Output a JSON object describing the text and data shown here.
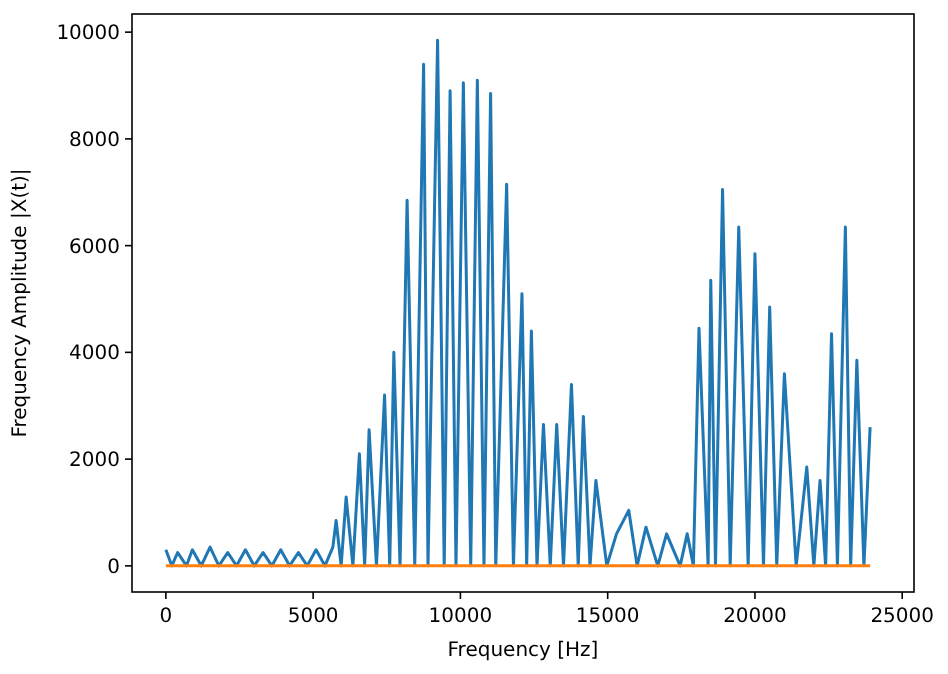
{
  "chart_data": {
    "type": "line",
    "xlabel": "Frequency [Hz]",
    "ylabel": "Frequency Amplitude |X(t)|",
    "xlim": [
      -1150,
      25400
    ],
    "ylim": [
      -490,
      10340
    ],
    "xticks": [
      0,
      5000,
      10000,
      15000,
      20000,
      25000
    ],
    "yticks": [
      0,
      2000,
      4000,
      6000,
      8000,
      10000
    ],
    "grid": false,
    "series": [
      {
        "color": "#1f77b4",
        "x": [
          0,
          200,
          400,
          700,
          900,
          1200,
          1500,
          1800,
          2100,
          2400,
          2700,
          3000,
          3300,
          3600,
          3900,
          4200,
          4500,
          4800,
          5100,
          5400,
          5670,
          5780,
          5950,
          6120,
          6350,
          6570,
          6750,
          6900,
          7150,
          7425,
          7600,
          7740,
          7950,
          8190,
          8450,
          8750,
          8900,
          9225,
          9450,
          9650,
          9850,
          10100,
          10350,
          10575,
          10800,
          11025,
          11200,
          11570,
          11800,
          12090,
          12250,
          12410,
          12600,
          12820,
          13050,
          13270,
          13500,
          13770,
          14000,
          14175,
          14400,
          14600,
          14970,
          15300,
          15715,
          16000,
          16300,
          16700,
          17000,
          17460,
          17700,
          17910,
          18100,
          18410,
          18500,
          18660,
          18900,
          19160,
          19450,
          19770,
          20000,
          20290,
          20500,
          20740,
          21000,
          21400,
          21760,
          22000,
          22210,
          22400,
          22600,
          22800,
          23070,
          23250,
          23460,
          23700,
          23910
        ],
        "values": [
          300,
          0,
          250,
          0,
          300,
          0,
          350,
          0,
          250,
          0,
          300,
          0,
          250,
          0,
          300,
          0,
          250,
          0,
          300,
          0,
          350,
          850,
          0,
          1290,
          0,
          2100,
          0,
          2550,
          0,
          3200,
          0,
          4000,
          0,
          6850,
          0,
          9400,
          0,
          9850,
          0,
          8900,
          0,
          9050,
          0,
          9100,
          0,
          8850,
          0,
          7150,
          0,
          5100,
          0,
          4400,
          0,
          2650,
          0,
          2650,
          0,
          3400,
          0,
          2800,
          0,
          1600,
          0,
          600,
          1040,
          0,
          725,
          0,
          600,
          0,
          600,
          0,
          4450,
          0,
          5350,
          0,
          7050,
          0,
          6350,
          0,
          5850,
          0,
          4850,
          0,
          3600,
          0,
          1850,
          0,
          1600,
          0,
          4350,
          0,
          6350,
          0,
          3850,
          0,
          2600
        ]
      },
      {
        "color": "#ff7f0e",
        "x": [
          0,
          23910
        ],
        "values": [
          0,
          0
        ]
      }
    ]
  }
}
